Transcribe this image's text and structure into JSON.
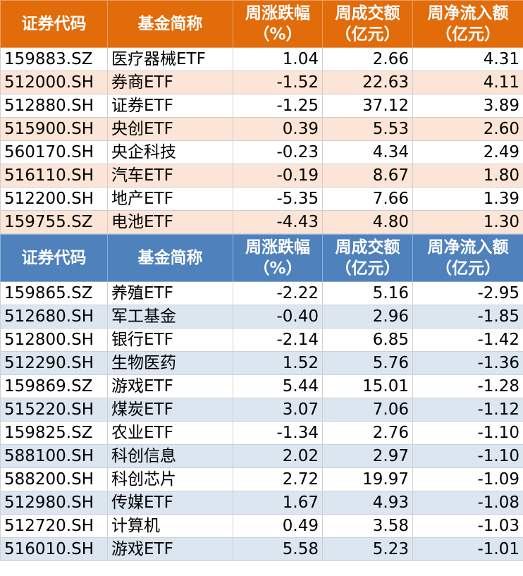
{
  "tables": [
    {
      "header": [
        "证券代码",
        "基金简称",
        [
          "周涨跌幅",
          "（%）"
        ],
        [
          "周成交额",
          "（亿元）"
        ],
        [
          "周净流入额",
          "（亿元）"
        ]
      ],
      "rows": [
        [
          "159883.SZ",
          "医疗器械ETF",
          "1.04",
          "2.66",
          "4.31"
        ],
        [
          "512000.SH",
          "券商ETF",
          "-1.52",
          "22.63",
          "4.11"
        ],
        [
          "512880.SH",
          "证券ETF",
          "-1.25",
          "37.12",
          "3.89"
        ],
        [
          "515900.SH",
          "央创ETF",
          "0.39",
          "5.53",
          "2.60"
        ],
        [
          "560170.SH",
          "央企科技",
          "-0.23",
          "4.34",
          "2.49"
        ],
        [
          "516110.SH",
          "汽车ETF",
          "-0.19",
          "8.67",
          "1.80"
        ],
        [
          "512200.SH",
          "地产ETF",
          "-5.35",
          "7.66",
          "1.39"
        ],
        [
          "159755.SZ",
          "电池ETF",
          "-4.43",
          "4.80",
          "1.30"
        ]
      ]
    },
    {
      "header": [
        "证券代码",
        "基金简称",
        [
          "周涨跌幅",
          "（%）"
        ],
        [
          "周成交额",
          "（亿元）"
        ],
        [
          "周净流入额",
          "（亿元）"
        ]
      ],
      "rows": [
        [
          "159865.SZ",
          "养殖ETF",
          "-2.22",
          "5.16",
          "-2.95"
        ],
        [
          "512680.SH",
          "军工基金",
          "-0.40",
          "2.96",
          "-1.85"
        ],
        [
          "512800.SH",
          "银行ETF",
          "-2.14",
          "6.85",
          "-1.42"
        ],
        [
          "512290.SH",
          "生物医药",
          "1.52",
          "5.76",
          "-1.36"
        ],
        [
          "159869.SZ",
          "游戏ETF",
          "5.44",
          "15.01",
          "-1.28"
        ],
        [
          "515220.SH",
          "煤炭ETF",
          "3.07",
          "7.06",
          "-1.12"
        ],
        [
          "159825.SZ",
          "农业ETF",
          "-1.34",
          "2.76",
          "-1.10"
        ],
        [
          "588100.SH",
          "科创信息",
          "2.02",
          "2.97",
          "-1.10"
        ],
        [
          "588200.SH",
          "科创芯片",
          "2.72",
          "19.97",
          "-1.09"
        ],
        [
          "512980.SH",
          "传媒ETF",
          "1.67",
          "4.93",
          "-1.08"
        ],
        [
          "512720.SH",
          "计算机",
          "0.49",
          "3.58",
          "-1.03"
        ],
        [
          "516010.SH",
          "游戏ETF",
          "5.58",
          "5.23",
          "-1.01"
        ]
      ]
    }
  ]
}
